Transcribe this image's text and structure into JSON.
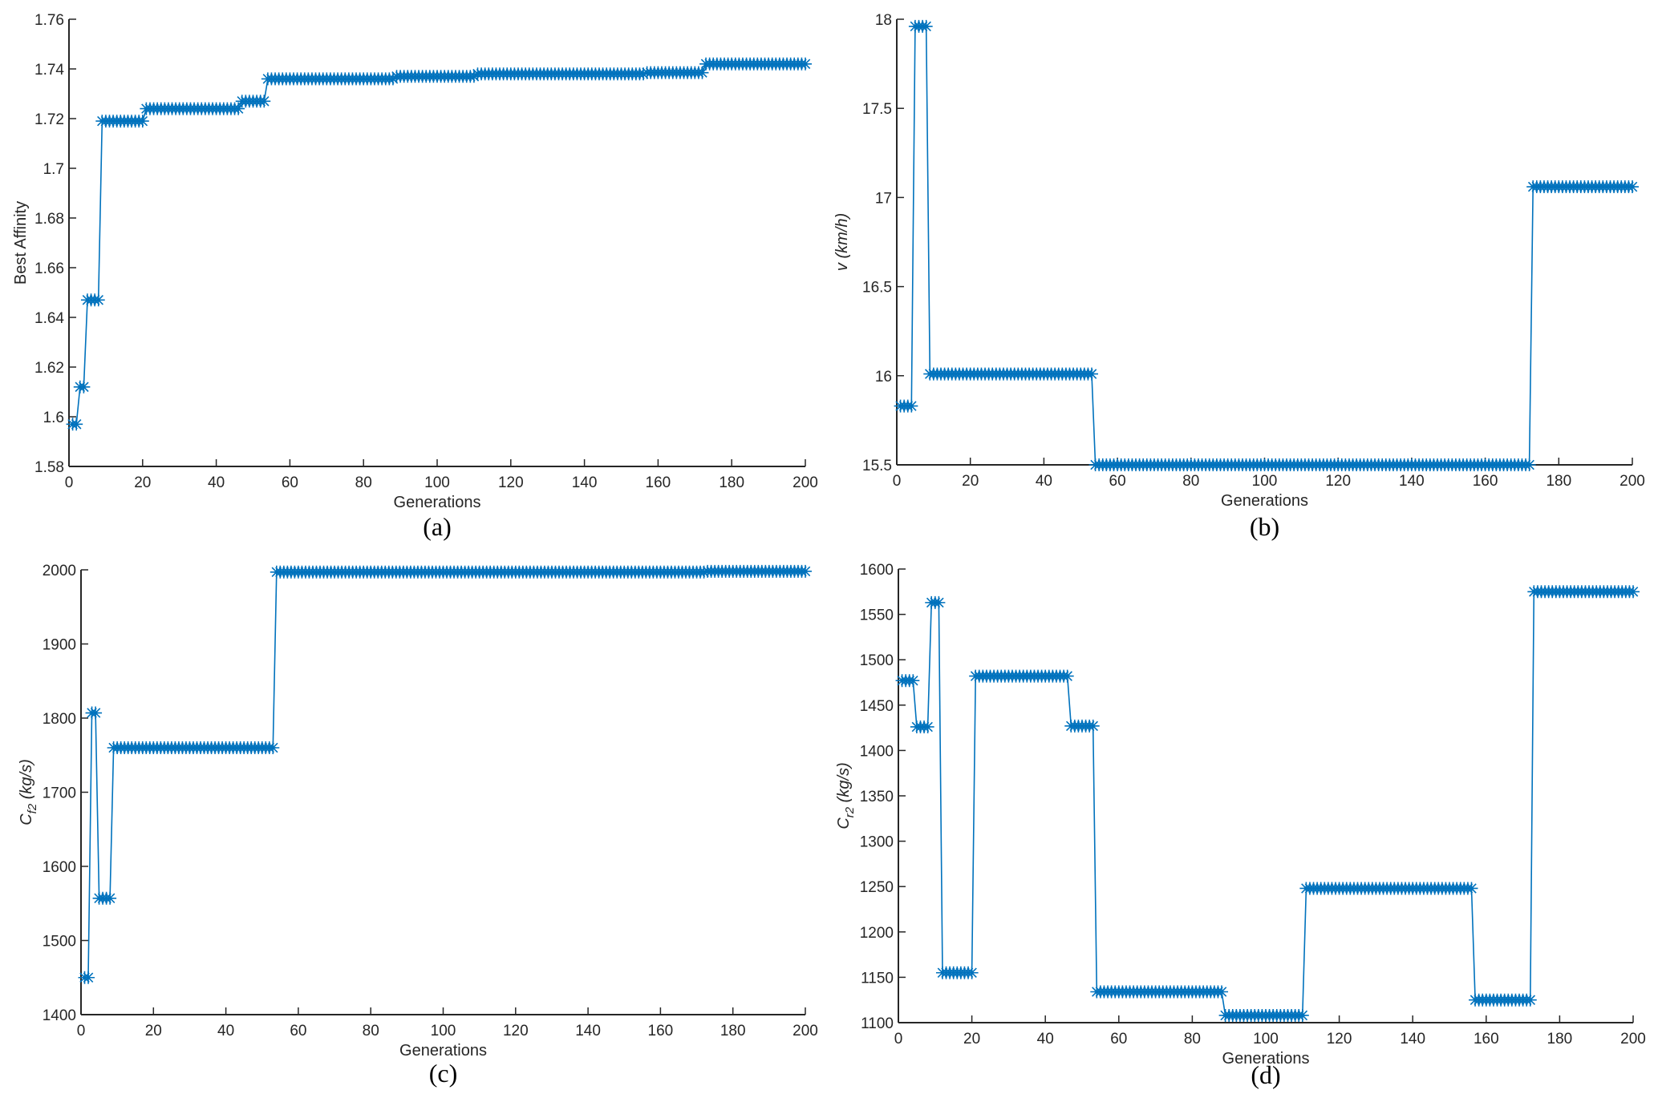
{
  "colors": {
    "series": "#0072BD",
    "axis": "#262626"
  },
  "chart_data": [
    {
      "type": "line",
      "panel": "(a)",
      "xlabel": "Generations",
      "ylabel": {
        "main": "Best Affinity",
        "sub": "",
        "unit": "",
        "italic": false
      },
      "xlim": [
        0,
        200
      ],
      "ylim": [
        1.58,
        1.76
      ],
      "xticks": [
        0,
        20,
        40,
        60,
        80,
        100,
        120,
        140,
        160,
        180,
        200
      ],
      "xtick_labels": [
        "0",
        "20",
        "40",
        "60",
        "80",
        "100",
        "120",
        "140",
        "160",
        "180",
        "200"
      ],
      "yticks": [
        1.58,
        1.6,
        1.62,
        1.64,
        1.66,
        1.68,
        1.7,
        1.72,
        1.74,
        1.76
      ],
      "ytick_labels": [
        "1.58",
        "1.6",
        "1.62",
        "1.64",
        "1.66",
        "1.68",
        "1.7",
        "1.72",
        "1.74",
        "1.76"
      ],
      "marker": "asterisk",
      "grid": false,
      "runs": [
        {
          "from": 1,
          "to": 2,
          "value": 1.597
        },
        {
          "from": 3,
          "to": 4,
          "value": 1.612
        },
        {
          "from": 5,
          "to": 8,
          "value": 1.647
        },
        {
          "from": 9,
          "to": 20,
          "value": 1.719
        },
        {
          "from": 21,
          "to": 46,
          "value": 1.724
        },
        {
          "from": 47,
          "to": 53,
          "value": 1.727
        },
        {
          "from": 54,
          "to": 88,
          "value": 1.736
        },
        {
          "from": 89,
          "to": 110,
          "value": 1.737
        },
        {
          "from": 111,
          "to": 156,
          "value": 1.738
        },
        {
          "from": 157,
          "to": 172,
          "value": 1.7385
        },
        {
          "from": 173,
          "to": 200,
          "value": 1.742
        }
      ]
    },
    {
      "type": "line",
      "panel": "(b)",
      "xlabel": "Generations",
      "ylabel": {
        "main": "v",
        "sub": "",
        "unit": "(km/h)",
        "italic": true
      },
      "xlim": [
        0,
        200
      ],
      "ylim": [
        15.5,
        18
      ],
      "xticks": [
        0,
        20,
        40,
        60,
        80,
        100,
        120,
        140,
        160,
        180,
        200
      ],
      "xtick_labels": [
        "0",
        "20",
        "40",
        "60",
        "80",
        "100",
        "120",
        "140",
        "160",
        "180",
        "200"
      ],
      "yticks": [
        15.5,
        16,
        16.5,
        17,
        17.5,
        18
      ],
      "ytick_labels": [
        "15.5",
        "16",
        "16.5",
        "17",
        "17.5",
        "18"
      ],
      "marker": "asterisk",
      "grid": false,
      "runs": [
        {
          "from": 1,
          "to": 4,
          "value": 15.83
        },
        {
          "from": 5,
          "to": 8,
          "value": 17.96
        },
        {
          "from": 9,
          "to": 53,
          "value": 16.01
        },
        {
          "from": 54,
          "to": 172,
          "value": 15.5
        },
        {
          "from": 173,
          "to": 200,
          "value": 17.06
        }
      ]
    },
    {
      "type": "line",
      "panel": "(c)",
      "xlabel": "Generations",
      "ylabel": {
        "main": "C",
        "sub": "f2",
        "unit": "(kg/s)",
        "italic": true
      },
      "xlim": [
        0,
        200
      ],
      "ylim": [
        1400,
        2000
      ],
      "xticks": [
        0,
        20,
        40,
        60,
        80,
        100,
        120,
        140,
        160,
        180,
        200
      ],
      "xtick_labels": [
        "0",
        "20",
        "40",
        "60",
        "80",
        "100",
        "120",
        "140",
        "160",
        "180",
        "200"
      ],
      "yticks": [
        1400,
        1500,
        1600,
        1700,
        1800,
        1900,
        2000
      ],
      "ytick_labels": [
        "1400",
        "1500",
        "1600",
        "1700",
        "1800",
        "1900",
        "2000"
      ],
      "marker": "asterisk",
      "grid": false,
      "runs": [
        {
          "from": 1,
          "to": 2,
          "value": 1450
        },
        {
          "from": 3,
          "to": 4,
          "value": 1807
        },
        {
          "from": 5,
          "to": 8,
          "value": 1557
        },
        {
          "from": 9,
          "to": 53,
          "value": 1760
        },
        {
          "from": 54,
          "to": 172,
          "value": 1997
        },
        {
          "from": 173,
          "to": 200,
          "value": 1998
        }
      ]
    },
    {
      "type": "line",
      "panel": "(d)",
      "xlabel": "Generations",
      "ylabel": {
        "main": "C",
        "sub": "r2",
        "unit": "(kg/s)",
        "italic": true
      },
      "xlim": [
        0,
        200
      ],
      "ylim": [
        1100,
        1600
      ],
      "xticks": [
        0,
        20,
        40,
        60,
        80,
        100,
        120,
        140,
        160,
        180,
        200
      ],
      "xtick_labels": [
        "0",
        "20",
        "40",
        "60",
        "80",
        "100",
        "120",
        "140",
        "160",
        "180",
        "200"
      ],
      "yticks": [
        1100,
        1150,
        1200,
        1250,
        1300,
        1350,
        1400,
        1450,
        1500,
        1550,
        1600
      ],
      "ytick_labels": [
        "1100",
        "1150",
        "1200",
        "1250",
        "1300",
        "1350",
        "1400",
        "1450",
        "1500",
        "1550",
        "1600"
      ],
      "marker": "asterisk",
      "grid": false,
      "runs": [
        {
          "from": 1,
          "to": 4,
          "value": 1477
        },
        {
          "from": 5,
          "to": 8,
          "value": 1426
        },
        {
          "from": 9,
          "to": 11,
          "value": 1563
        },
        {
          "from": 12,
          "to": 20,
          "value": 1155
        },
        {
          "from": 21,
          "to": 46,
          "value": 1482
        },
        {
          "from": 47,
          "to": 53,
          "value": 1427
        },
        {
          "from": 54,
          "to": 88,
          "value": 1134
        },
        {
          "from": 89,
          "to": 110,
          "value": 1108
        },
        {
          "from": 111,
          "to": 156,
          "value": 1248
        },
        {
          "from": 157,
          "to": 172,
          "value": 1125
        },
        {
          "from": 173,
          "to": 200,
          "value": 1575
        }
      ]
    }
  ]
}
